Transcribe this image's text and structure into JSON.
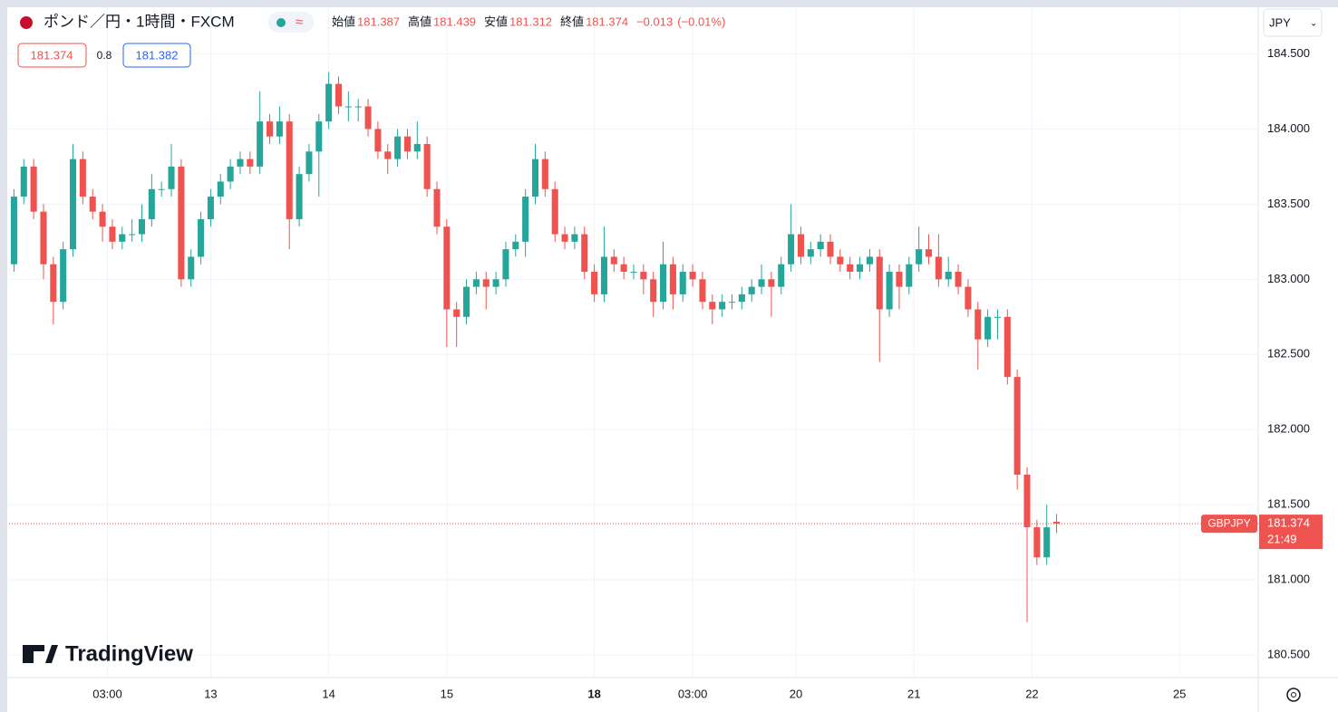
{
  "chart_data": {
    "type": "candlestick",
    "title": "ポンド／円・1時間・FXCM",
    "ohlc_labels": [
      "始値",
      "高値",
      "安値",
      "終値"
    ],
    "change": "−0.013",
    "change_pct": "(−0.01%)",
    "bid": "181.374",
    "spread": "0.8",
    "ask": "181.382",
    "currency": "JPY",
    "symbol": "GBPJPY",
    "countdown": "21:49",
    "brand": "TradingView",
    "up_color": "#26a69a",
    "down_color": "#ef5350",
    "grid": true,
    "xlim": [
      -1,
      253
    ],
    "ylim": [
      180.35,
      184.81
    ],
    "xticks": [
      {
        "value": 19,
        "label": "03:00"
      },
      {
        "value": 40,
        "label": "13"
      },
      {
        "value": 64,
        "label": "14"
      },
      {
        "value": 88,
        "label": "15"
      },
      {
        "value": 118,
        "label": "18"
      },
      {
        "value": 138,
        "label": "03:00"
      },
      {
        "value": 159,
        "label": "20"
      },
      {
        "value": 183,
        "label": "21"
      },
      {
        "value": 207,
        "label": "22"
      },
      {
        "value": 237,
        "label": "25"
      }
    ],
    "yticks": [
      {
        "value": 180.5,
        "label": "180.500"
      },
      {
        "value": 181,
        "label": "181.000"
      },
      {
        "value": 181.5,
        "label": "181.500"
      },
      {
        "value": 182,
        "label": "182.000"
      },
      {
        "value": 182.5,
        "label": "182.500"
      },
      {
        "value": 183,
        "label": "183.000"
      },
      {
        "value": 183.5,
        "label": "183.500"
      },
      {
        "value": 184,
        "label": "184.000"
      },
      {
        "value": 184.5,
        "label": "184.500"
      }
    ],
    "x": [
      0,
      2,
      4,
      6,
      8,
      10,
      12,
      14,
      16,
      18,
      20,
      22,
      24,
      26,
      28,
      30,
      32,
      34,
      36,
      38,
      40,
      42,
      44,
      46,
      48,
      50,
      52,
      54,
      56,
      58,
      60,
      62,
      64,
      66,
      68,
      70,
      72,
      74,
      76,
      78,
      80,
      82,
      84,
      86,
      88,
      90,
      92,
      94,
      96,
      98,
      100,
      102,
      104,
      106,
      108,
      110,
      112,
      114,
      116,
      118,
      120,
      122,
      124,
      126,
      128,
      130,
      132,
      134,
      136,
      138,
      140,
      142,
      144,
      146,
      148,
      150,
      152,
      154,
      156,
      158,
      160,
      162,
      164,
      166,
      168,
      170,
      172,
      174,
      176,
      178,
      180,
      182,
      184,
      186,
      188,
      190,
      192,
      194,
      196,
      198,
      200,
      202,
      204,
      206,
      208,
      210,
      212
    ],
    "candles": [
      [
        183.1,
        183.6,
        183.05,
        183.55
      ],
      [
        183.55,
        183.8,
        183.5,
        183.75
      ],
      [
        183.75,
        183.8,
        183.4,
        183.45
      ],
      [
        183.45,
        183.5,
        183.0,
        183.1
      ],
      [
        183.1,
        183.15,
        182.7,
        182.85
      ],
      [
        182.85,
        183.25,
        182.8,
        183.2
      ],
      [
        183.2,
        183.9,
        183.15,
        183.8
      ],
      [
        183.8,
        183.85,
        183.5,
        183.55
      ],
      [
        183.55,
        183.6,
        183.4,
        183.45
      ],
      [
        183.45,
        183.5,
        183.25,
        183.35
      ],
      [
        183.35,
        183.4,
        183.2,
        183.25
      ],
      [
        183.25,
        183.35,
        183.2,
        183.3
      ],
      [
        183.3,
        183.4,
        183.25,
        183.3
      ],
      [
        183.3,
        183.5,
        183.25,
        183.4
      ],
      [
        183.4,
        183.7,
        183.35,
        183.6
      ],
      [
        183.6,
        183.65,
        183.55,
        183.6
      ],
      [
        183.6,
        183.9,
        183.55,
        183.75
      ],
      [
        183.75,
        183.8,
        182.95,
        183.0
      ],
      [
        183.0,
        183.2,
        182.95,
        183.15
      ],
      [
        183.15,
        183.45,
        183.1,
        183.4
      ],
      [
        183.4,
        183.6,
        183.35,
        183.55
      ],
      [
        183.55,
        183.7,
        183.5,
        183.65
      ],
      [
        183.65,
        183.8,
        183.6,
        183.75
      ],
      [
        183.75,
        183.85,
        183.7,
        183.8
      ],
      [
        183.8,
        183.85,
        183.7,
        183.75
      ],
      [
        183.75,
        184.25,
        183.7,
        184.05
      ],
      [
        184.05,
        184.1,
        183.9,
        183.95
      ],
      [
        183.95,
        184.15,
        183.9,
        184.05
      ],
      [
        184.05,
        184.1,
        183.2,
        183.4
      ],
      [
        183.4,
        183.75,
        183.35,
        183.7
      ],
      [
        183.7,
        183.9,
        183.65,
        183.85
      ],
      [
        183.85,
        184.1,
        183.55,
        184.05
      ],
      [
        184.05,
        184.38,
        184.0,
        184.3
      ],
      [
        184.3,
        184.35,
        184.1,
        184.15
      ],
      [
        184.15,
        184.25,
        184.05,
        184.15
      ],
      [
        184.15,
        184.2,
        184.05,
        184.15
      ],
      [
        184.15,
        184.2,
        183.95,
        184.0
      ],
      [
        184.0,
        184.05,
        183.8,
        183.85
      ],
      [
        183.85,
        183.9,
        183.7,
        183.8
      ],
      [
        183.8,
        184.0,
        183.75,
        183.95
      ],
      [
        183.95,
        184.0,
        183.8,
        183.85
      ],
      [
        183.85,
        184.05,
        183.8,
        183.9
      ],
      [
        183.9,
        183.95,
        183.55,
        183.6
      ],
      [
        183.6,
        183.65,
        183.3,
        183.35
      ],
      [
        183.35,
        183.4,
        182.55,
        182.8
      ],
      [
        182.8,
        182.85,
        182.55,
        182.75
      ],
      [
        182.75,
        183.0,
        182.7,
        182.95
      ],
      [
        182.95,
        183.05,
        182.9,
        183.0
      ],
      [
        183.0,
        183.05,
        182.8,
        182.95
      ],
      [
        182.95,
        183.05,
        182.9,
        183.0
      ],
      [
        183.0,
        183.25,
        182.95,
        183.2
      ],
      [
        183.2,
        183.3,
        183.15,
        183.25
      ],
      [
        183.25,
        183.6,
        183.15,
        183.55
      ],
      [
        183.55,
        183.9,
        183.5,
        183.8
      ],
      [
        183.8,
        183.85,
        183.55,
        183.6
      ],
      [
        183.6,
        183.65,
        183.25,
        183.3
      ],
      [
        183.3,
        183.35,
        183.2,
        183.25
      ],
      [
        183.25,
        183.35,
        183.2,
        183.3
      ],
      [
        183.3,
        183.35,
        183.0,
        183.05
      ],
      [
        183.05,
        183.1,
        182.85,
        182.9
      ],
      [
        182.9,
        183.35,
        182.85,
        183.15
      ],
      [
        183.15,
        183.2,
        183.05,
        183.1
      ],
      [
        183.1,
        183.15,
        183.0,
        183.05
      ],
      [
        183.05,
        183.1,
        183.0,
        183.05
      ],
      [
        183.05,
        183.1,
        182.9,
        183.0
      ],
      [
        183.0,
        183.05,
        182.75,
        182.85
      ],
      [
        182.85,
        183.25,
        182.8,
        183.1
      ],
      [
        183.1,
        183.15,
        182.8,
        182.9
      ],
      [
        182.9,
        183.1,
        182.85,
        183.05
      ],
      [
        183.05,
        183.1,
        182.95,
        183.0
      ],
      [
        183.0,
        183.05,
        182.8,
        182.85
      ],
      [
        182.85,
        182.9,
        182.7,
        182.8
      ],
      [
        182.8,
        182.9,
        182.75,
        182.85
      ],
      [
        182.85,
        182.9,
        182.8,
        182.85
      ],
      [
        182.85,
        182.95,
        182.8,
        182.9
      ],
      [
        182.9,
        183.0,
        182.85,
        182.95
      ],
      [
        182.95,
        183.1,
        182.9,
        183.0
      ],
      [
        183.0,
        183.05,
        182.75,
        182.95
      ],
      [
        182.95,
        183.15,
        182.9,
        183.1
      ],
      [
        183.1,
        183.5,
        183.05,
        183.3
      ],
      [
        183.3,
        183.35,
        183.1,
        183.15
      ],
      [
        183.15,
        183.25,
        183.1,
        183.2
      ],
      [
        183.2,
        183.3,
        183.15,
        183.25
      ],
      [
        183.25,
        183.3,
        183.1,
        183.15
      ],
      [
        183.15,
        183.2,
        183.05,
        183.1
      ],
      [
        183.1,
        183.15,
        183.0,
        183.05
      ],
      [
        183.05,
        183.15,
        183.0,
        183.1
      ],
      [
        183.1,
        183.2,
        183.05,
        183.15
      ],
      [
        183.15,
        183.2,
        182.45,
        182.8
      ],
      [
        182.8,
        183.1,
        182.75,
        183.05
      ],
      [
        183.05,
        183.1,
        182.8,
        182.95
      ],
      [
        182.95,
        183.15,
        182.9,
        183.1
      ],
      [
        183.1,
        183.35,
        183.05,
        183.2
      ],
      [
        183.2,
        183.3,
        183.1,
        183.15
      ],
      [
        183.15,
        183.3,
        182.95,
        183.0
      ],
      [
        183.0,
        183.15,
        182.95,
        183.05
      ],
      [
        183.05,
        183.1,
        182.9,
        182.95
      ],
      [
        182.95,
        183.0,
        182.75,
        182.8
      ],
      [
        182.8,
        182.85,
        182.4,
        182.6
      ],
      [
        182.6,
        182.8,
        182.55,
        182.75
      ],
      [
        182.75,
        182.8,
        182.6,
        182.75
      ],
      [
        182.75,
        182.8,
        182.3,
        182.35
      ],
      [
        182.35,
        182.4,
        181.6,
        181.7
      ],
      [
        181.7,
        181.75,
        180.72,
        181.35
      ],
      [
        181.35,
        181.4,
        181.1,
        181.15
      ],
      [
        181.15,
        181.5,
        181.1,
        181.35
      ],
      [
        181.387,
        181.439,
        181.312,
        181.374
      ]
    ]
  }
}
